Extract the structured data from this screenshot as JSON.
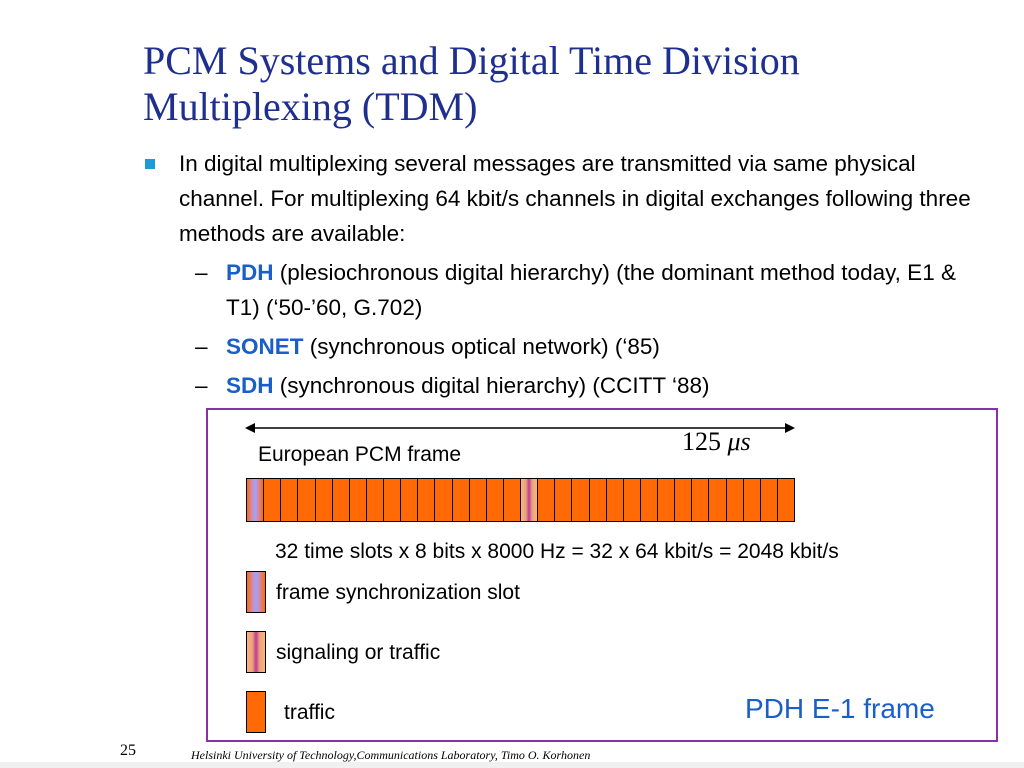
{
  "slide": {
    "title_line1": "PCM Systems and Digital Time Division",
    "title_line2": "Multiplexing (TDM)",
    "bullet_main": "In digital multiplexing several messages are transmitted via same physical channel. For multiplexing 64 kbit/s channels in digital exchanges following three methods are available:",
    "sub_bullets": [
      {
        "dash": "–",
        "keyword": "PDH",
        "text": " (plesiochronous digital hierarchy) (the dominant method today, E1 & T1) (‘50-’60, G.702)"
      },
      {
        "dash": "–",
        "keyword": "SONET",
        "text": " (synchronous optical network) (‘85)"
      },
      {
        "dash": "–",
        "keyword": "SDH",
        "text": " (synchronous digital hierarchy) (CCITT ‘88)"
      }
    ]
  },
  "diagram": {
    "duration_number": "125",
    "duration_unit": "μs",
    "frame_label": "European PCM frame",
    "formula": "32 time slots x 8 bits x 8000 Hz = 32 x 64 kbit/s = 2048 kbit/s",
    "slot_count": 32,
    "sync_slot_index": 0,
    "signaling_slot_index": 16,
    "legend": [
      {
        "type": "sync",
        "label": "frame synchronization slot"
      },
      {
        "type": "signaling",
        "label": "signaling or traffic"
      },
      {
        "type": "traffic",
        "label": "traffic"
      }
    ],
    "caption": "PDH E-1 frame"
  },
  "footer": {
    "page_number": "25",
    "text": "Helsinki University of Technology,Communications Laboratory, Timo O. Korhonen"
  },
  "colors": {
    "title": "#1f2f8f",
    "bullet_square": "#1e9bd6",
    "keyword": "#1a5ec8",
    "traffic_slot": "#ff6a06",
    "box_border": "#8a2fa6"
  }
}
